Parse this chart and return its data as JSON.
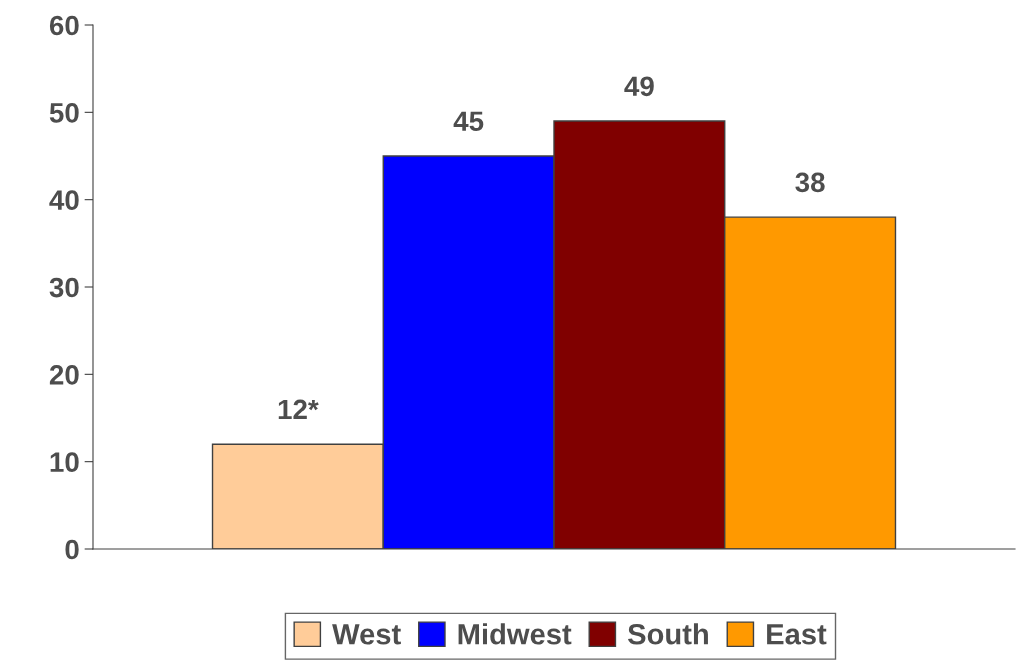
{
  "chart_data": {
    "type": "bar",
    "categories": [
      null
    ],
    "series": [
      {
        "name": "West",
        "color": "#ffcc99",
        "values": [
          12
        ],
        "value_labels": [
          "12*"
        ]
      },
      {
        "name": "Midwest",
        "color": "#0000ff",
        "values": [
          45
        ],
        "value_labels": [
          "45"
        ]
      },
      {
        "name": "South",
        "color": "#800000",
        "values": [
          49
        ],
        "value_labels": [
          "49"
        ]
      },
      {
        "name": "East",
        "color": "#ff9900",
        "values": [
          38
        ],
        "value_labels": [
          "38"
        ]
      }
    ],
    "ylim": [
      0,
      60
    ],
    "yticks": [
      0,
      10,
      20,
      30,
      40,
      50,
      60
    ],
    "grid": false,
    "legend": "bottom"
  }
}
